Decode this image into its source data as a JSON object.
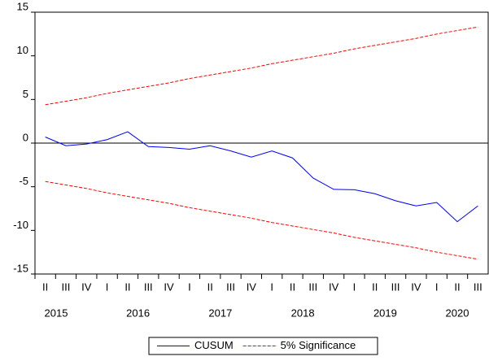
{
  "chart_data": {
    "type": "line",
    "categories": [
      "II",
      "III",
      "IV",
      "I",
      "II",
      "III",
      "IV",
      "I",
      "II",
      "III",
      "IV",
      "I",
      "II",
      "III",
      "IV",
      "I",
      "II",
      "III",
      "IV",
      "I",
      "II",
      "III"
    ],
    "year_labels": [
      "2015",
      "2016",
      "2017",
      "2018",
      "2019",
      "2020"
    ],
    "series": [
      {
        "name": "CUSUM",
        "color": "#0000ff",
        "dash": false,
        "values": [
          0.7,
          -0.3,
          -0.1,
          0.4,
          1.3,
          -0.4,
          -0.5,
          -0.7,
          -0.3,
          -0.9,
          -1.6,
          -0.9,
          -1.7,
          -4.0,
          -5.3,
          -5.35,
          -5.8,
          -6.6,
          -7.2,
          -6.8,
          -9.0,
          -7.2
        ]
      },
      {
        "name": "5% Significance",
        "color": "#ff0000",
        "dash": true,
        "values": [
          4.4,
          4.8,
          5.2,
          5.7,
          6.1,
          6.5,
          6.9,
          7.4,
          7.8,
          8.2,
          8.6,
          9.1,
          9.5,
          9.9,
          10.3,
          10.8,
          11.2,
          11.6,
          12.0,
          12.5,
          12.9,
          13.3
        ],
        "lower_values": [
          -4.4,
          -4.8,
          -5.2,
          -5.7,
          -6.1,
          -6.5,
          -6.9,
          -7.4,
          -7.8,
          -8.2,
          -8.6,
          -9.1,
          -9.5,
          -9.9,
          -10.3,
          -10.8,
          -11.2,
          -11.6,
          -12.0,
          -12.5,
          -12.9,
          -13.3
        ]
      }
    ],
    "ylim": [
      -15,
      15
    ],
    "yticks": [
      -15,
      -10,
      -5,
      0,
      5,
      10,
      15
    ],
    "reference_line": 0
  }
}
